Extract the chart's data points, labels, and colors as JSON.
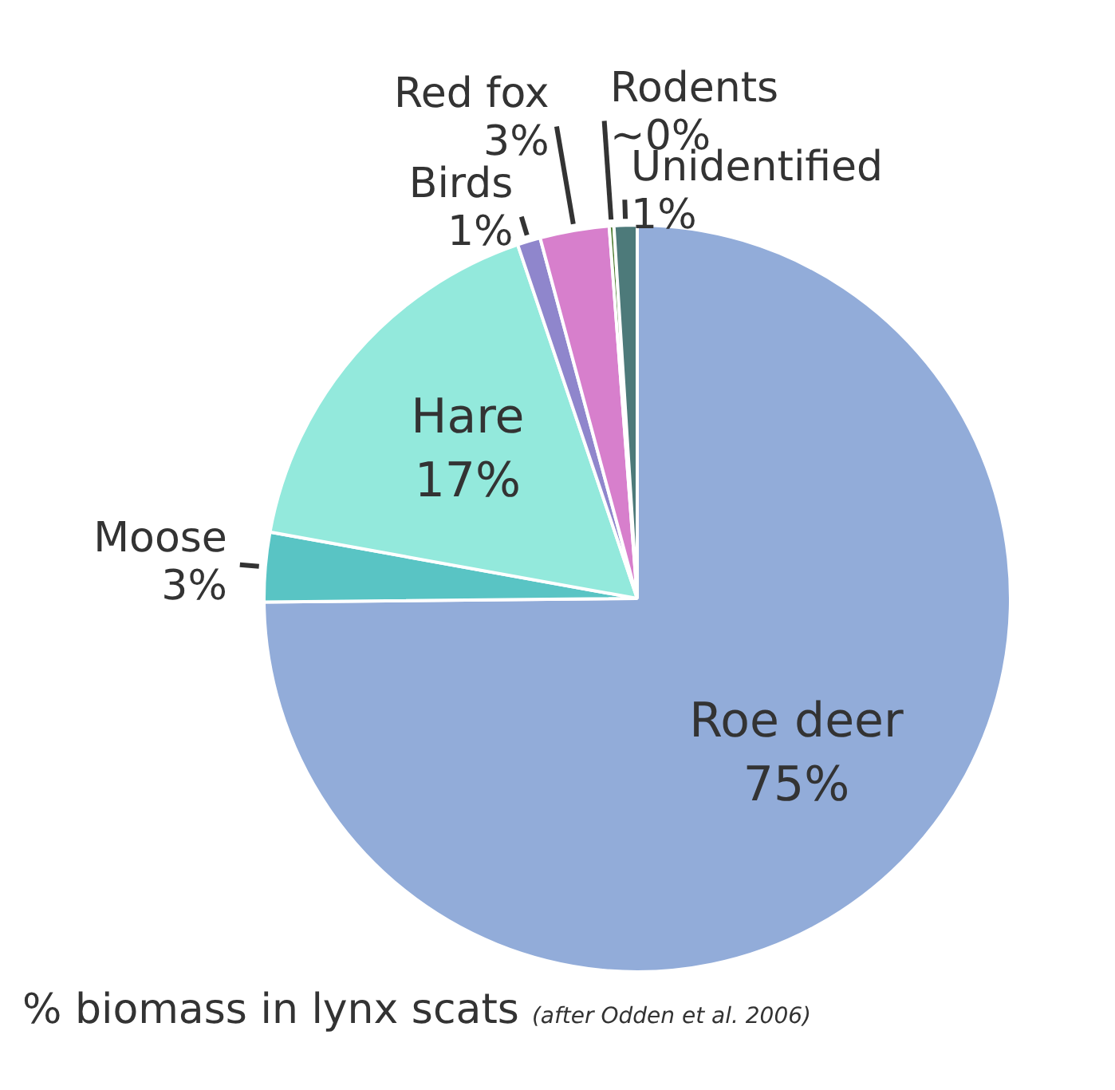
{
  "chart_data": {
    "type": "pie",
    "title": "% biomass in lynx scats",
    "categories": [
      "Roe deer",
      "Moose",
      "Hare",
      "Birds",
      "Red fox",
      "Rodents",
      "Unidentified"
    ],
    "values": [
      75,
      3,
      17,
      1,
      3,
      0.2,
      1
    ],
    "value_labels": [
      "75%",
      "3%",
      "17%",
      "1%",
      "3%",
      "~0%",
      "1%"
    ],
    "colors": [
      "#92acd9",
      "#59c4c4",
      "#93e9dc",
      "#8f86cc",
      "#d77fcc",
      "#4a7a2c",
      "#4d7a7a"
    ],
    "annotations": [
      "(after Odden et al. 2006)"
    ],
    "legend": false
  }
}
